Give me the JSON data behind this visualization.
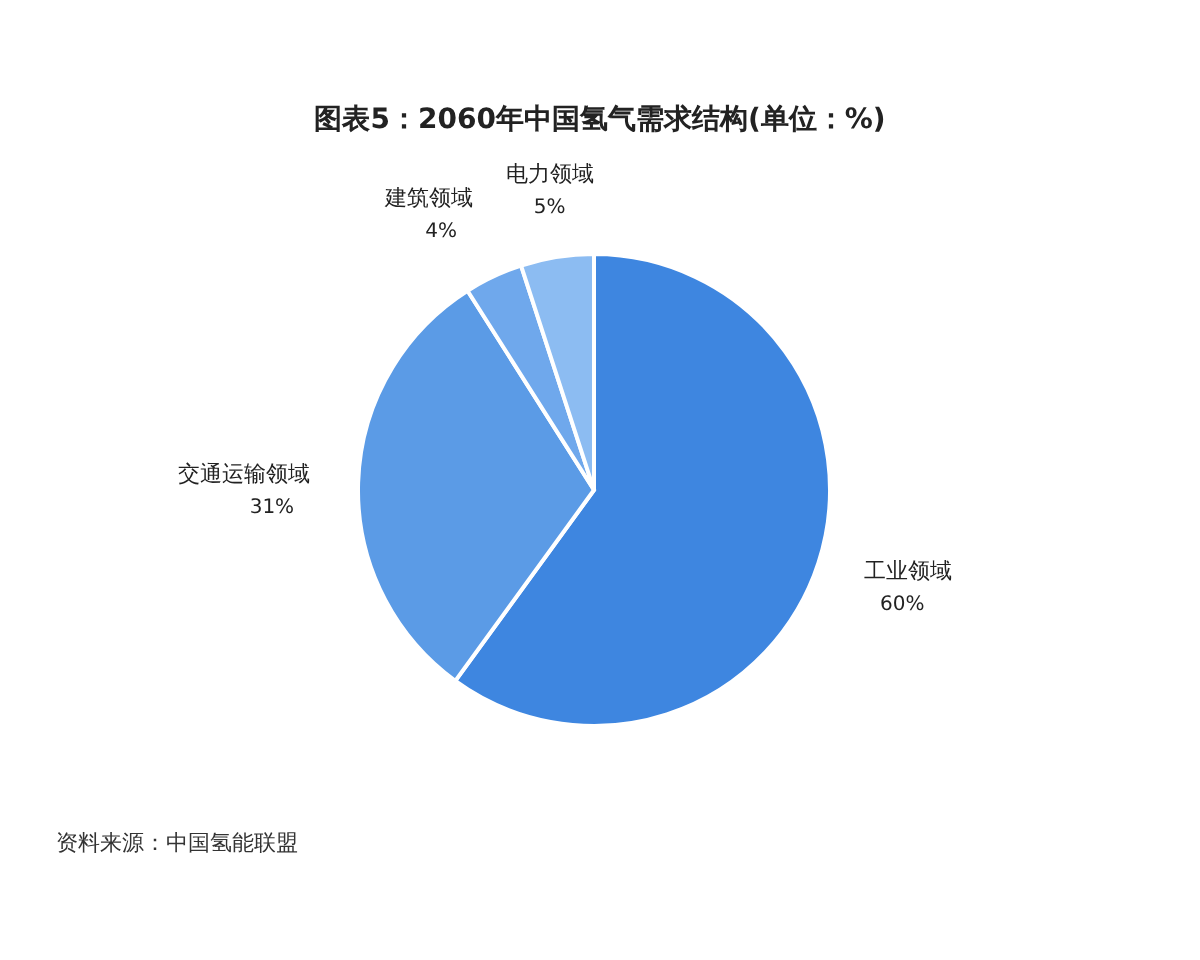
{
  "chart_data": {
    "type": "pie",
    "title": "图表5：2060年中国氢气需求结构(单位：%)",
    "categories": [
      "工业领域",
      "交通运输领域",
      "建筑领域",
      "电力领域"
    ],
    "values": [
      60,
      31,
      4,
      5
    ],
    "value_labels": [
      "60%",
      "31%",
      "4%",
      "5%"
    ],
    "colors": [
      "#3e86e0",
      "#5b9be6",
      "#6fa8ec",
      "#8cbcf2"
    ],
    "legend": false,
    "annotations": [
      "资料来源：中国氢能联盟"
    ]
  }
}
